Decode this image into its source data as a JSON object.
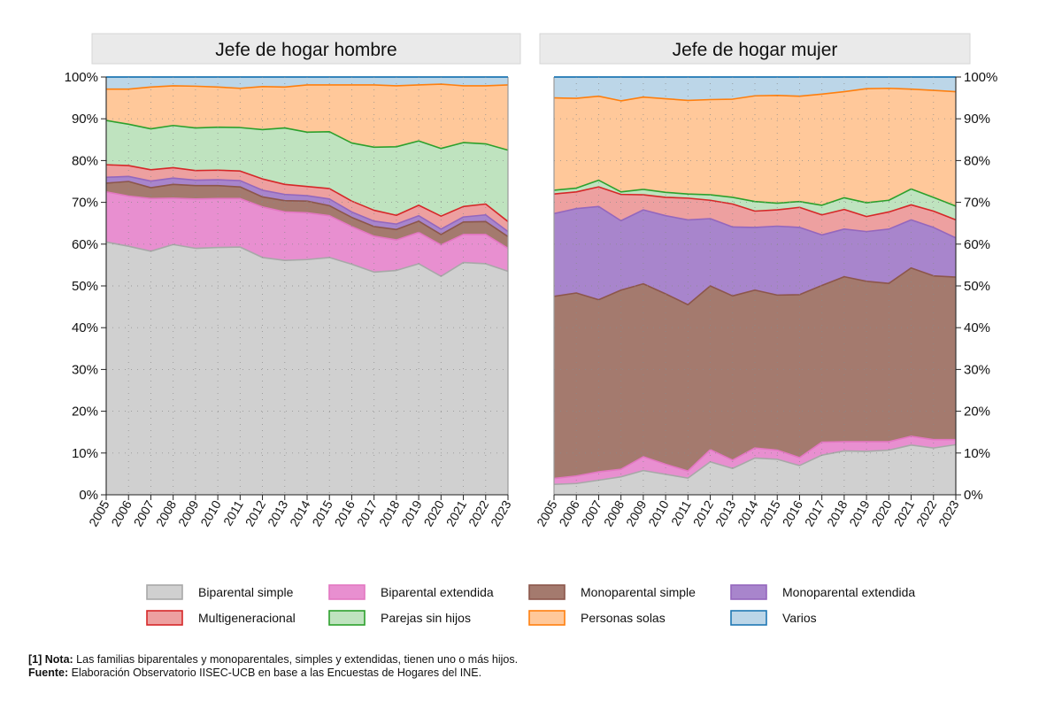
{
  "chart_data": {
    "type": "area",
    "stacked": true,
    "years": [
      "2005",
      "2006",
      "2007",
      "2008",
      "2009",
      "2010",
      "2011",
      "2012",
      "2013",
      "2014",
      "2015",
      "2016",
      "2017",
      "2018",
      "2019",
      "2020",
      "2021",
      "2022",
      "2023"
    ],
    "ylim": [
      0,
      100
    ],
    "yticks": [
      0,
      10,
      20,
      30,
      40,
      50,
      60,
      70,
      80,
      90,
      100
    ],
    "ytick_labels": [
      "0%",
      "10%",
      "20%",
      "30%",
      "40%",
      "50%",
      "60%",
      "70%",
      "80%",
      "90%",
      "100%"
    ],
    "series_meta": [
      {
        "name": "Biparental simple",
        "fill": "#d0d0d0",
        "stroke": "#a8a8a8"
      },
      {
        "name": "Biparental extendida",
        "fill": "#e88fd0",
        "stroke": "#e377c2"
      },
      {
        "name": "Monoparental simple",
        "fill": "#a47a6e",
        "stroke": "#8c564b"
      },
      {
        "name": "Monoparental extendida",
        "fill": "#a885cc",
        "stroke": "#9467bd"
      },
      {
        "name": "Multigeneracional",
        "fill": "#eda0a0",
        "stroke": "#d62728"
      },
      {
        "name": "Parejas sin hijos",
        "fill": "#bfe3bf",
        "stroke": "#2ca02c"
      },
      {
        "name": "Personas solas",
        "fill": "#ffc89a",
        "stroke": "#ff7f0e"
      },
      {
        "name": "Varios",
        "fill": "#bcd6e8",
        "stroke": "#1f77b4"
      }
    ],
    "panels": [
      {
        "title": "Jefe de hogar hombre",
        "series": [
          {
            "name": "Biparental simple",
            "values": [
              60.5,
              59.5,
              58.3,
              59.9,
              59.0,
              59.2,
              59.3,
              56.8,
              56.1,
              56.3,
              56.8,
              55.2,
              53.3,
              53.7,
              55.3,
              52.3,
              55.6,
              55.3,
              53.5
            ]
          },
          {
            "name": "Biparental extendida",
            "values": [
              12.0,
              12.0,
              12.6,
              11.1,
              11.8,
              11.7,
              11.6,
              12.1,
              11.6,
              11.2,
              10.0,
              9.0,
              8.6,
              7.3,
              7.5,
              7.5,
              6.7,
              7.0,
              5.5
            ]
          },
          {
            "name": "Monoparental simple",
            "values": [
              2.1,
              3.5,
              2.6,
              3.3,
              3.2,
              3.1,
              2.8,
              2.4,
              2.7,
              2.8,
              2.4,
              2.2,
              2.3,
              2.5,
              2.7,
              2.5,
              3.0,
              3.1,
              2.8
            ]
          },
          {
            "name": "Monoparental extendida",
            "values": [
              1.4,
              1.2,
              1.6,
              1.5,
              1.3,
              1.4,
              1.5,
              1.6,
              1.5,
              1.3,
              1.6,
              1.3,
              1.3,
              1.3,
              1.3,
              1.3,
              1.2,
              1.6,
              1.2
            ]
          },
          {
            "name": "Multigeneracional",
            "values": [
              3.0,
              2.6,
              2.7,
              2.5,
              2.3,
              2.3,
              2.3,
              2.7,
              2.4,
              2.2,
              2.5,
              2.6,
              2.6,
              2.1,
              2.5,
              3.1,
              2.5,
              2.6,
              2.4
            ]
          },
          {
            "name": "Parejas sin hijos",
            "values": [
              10.6,
              9.9,
              9.8,
              10.1,
              10.2,
              10.3,
              10.4,
              11.8,
              13.5,
              13.0,
              13.6,
              13.9,
              15.1,
              16.4,
              15.4,
              16.2,
              15.3,
              14.4,
              17.1
            ]
          },
          {
            "name": "Personas solas",
            "values": [
              7.5,
              8.4,
              10.0,
              9.5,
              10.0,
              9.6,
              9.4,
              10.3,
              9.8,
              11.3,
              11.2,
              13.9,
              14.9,
              14.6,
              13.4,
              15.4,
              13.6,
              13.9,
              15.6
            ]
          },
          {
            "name": "Varios",
            "values": [
              2.9,
              2.9,
              2.4,
              2.1,
              2.2,
              2.4,
              2.7,
              2.3,
              2.4,
              1.9,
              1.9,
              1.9,
              1.9,
              2.1,
              1.9,
              1.7,
              2.1,
              2.1,
              1.9
            ]
          }
        ]
      },
      {
        "title": "Jefe de hogar mujer",
        "series": [
          {
            "name": "Biparental simple",
            "values": [
              2.5,
              2.7,
              3.5,
              4.3,
              5.8,
              4.9,
              4.0,
              7.9,
              6.3,
              8.8,
              8.5,
              7.0,
              9.5,
              10.5,
              10.4,
              10.7,
              11.9,
              11.2,
              12.0
            ]
          },
          {
            "name": "Biparental extendida",
            "values": [
              1.4,
              1.8,
              2.0,
              1.8,
              3.3,
              2.4,
              1.7,
              2.9,
              2.0,
              2.4,
              2.2,
              1.9,
              3.1,
              2.2,
              2.3,
              2.0,
              2.1,
              2.0,
              1.2
            ]
          },
          {
            "name": "Monoparental simple",
            "values": [
              43.6,
              43.8,
              41.2,
              42.9,
              41.4,
              40.8,
              39.8,
              39.2,
              39.3,
              37.8,
              37.1,
              39.0,
              37.5,
              39.5,
              38.4,
              37.9,
              40.3,
              39.2,
              38.9
            ]
          },
          {
            "name": "Monoparental extendida",
            "values": [
              19.8,
              20.2,
              22.3,
              16.6,
              17.7,
              18.7,
              20.3,
              16.1,
              16.5,
              15.0,
              16.5,
              16.1,
              12.1,
              11.4,
              11.9,
              13.0,
              11.5,
              11.6,
              9.4
            ]
          },
          {
            "name": "Multigeneracional",
            "values": [
              4.7,
              4.0,
              4.7,
              6.3,
              3.6,
              4.4,
              5.2,
              4.4,
              5.5,
              3.9,
              3.9,
              4.8,
              4.8,
              4.7,
              3.6,
              4.1,
              3.6,
              3.9,
              4.3
            ]
          },
          {
            "name": "Parejas sin hijos",
            "values": [
              0.9,
              0.9,
              1.6,
              0.6,
              1.3,
              1.2,
              1.0,
              1.3,
              1.6,
              2.3,
              1.6,
              1.4,
              2.3,
              2.8,
              3.3,
              2.8,
              3.8,
              3.3,
              3.3
            ]
          },
          {
            "name": "Personas solas",
            "values": [
              22.1,
              21.5,
              20.1,
              21.8,
              22.1,
              22.4,
              22.4,
              22.8,
              23.5,
              25.3,
              25.8,
              25.2,
              26.6,
              25.4,
              27.3,
              26.8,
              23.9,
              25.6,
              27.4
            ]
          },
          {
            "name": "Varios",
            "values": [
              5.0,
              5.1,
              4.6,
              5.7,
              4.8,
              5.2,
              5.6,
              5.4,
              5.3,
              4.5,
              4.4,
              4.6,
              4.1,
              3.5,
              2.8,
              2.7,
              2.9,
              3.2,
              3.5
            ]
          }
        ]
      }
    ]
  },
  "footnote": {
    "note_label": "[1] Nota:",
    "note_text": " Las familias biparentales y monoparentales, simples y extendidas, tienen uno o más hijos.",
    "source_label": "Fuente:",
    "source_text": " Elaboración Observatorio IISEC-UCB en base a las Encuestas de Hogares del INE."
  }
}
